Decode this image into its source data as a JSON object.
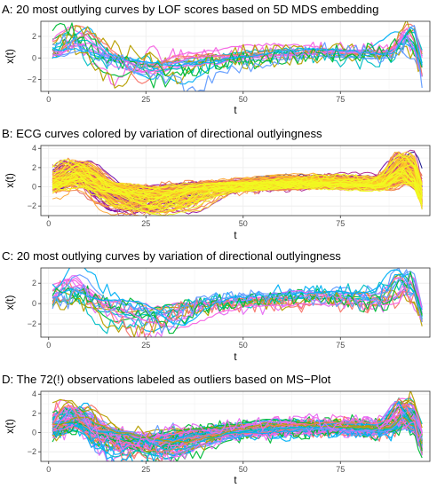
{
  "figure": {
    "panels": [
      {
        "title": "A: 20 most outlying curves by LOF scores based on 5D MDS embedding",
        "n_curves": 20,
        "palette": "mixed"
      },
      {
        "title": "B: ECG curves colored by variation of directional outlyingness",
        "n_curves": 140,
        "palette": "plasma"
      },
      {
        "title": "C: 20 most outlying curves by variation of directional outlyingness",
        "n_curves": 20,
        "palette": "mixed"
      },
      {
        "title": "D: The 72(!) observations labeled as outliers based on MS−Plot",
        "n_curves": 72,
        "palette": "mixed"
      }
    ]
  },
  "chart_data": [
    {
      "type": "line",
      "title": "A: 20 most outlying curves by LOF scores based on 5D MDS embedding",
      "xlabel": "t",
      "ylabel": "x(t)",
      "xlim": [
        -2,
        98
      ],
      "ylim": [
        -3.1,
        3.4
      ],
      "xticks": [
        0,
        25,
        50,
        75,
        100
      ],
      "yticks": [
        -2,
        0,
        2
      ],
      "grid": true,
      "legend": "none",
      "n_curves": 20,
      "colors": [
        "#F564E3",
        "#00BA38",
        "#00B0F6",
        "#619CFF",
        "#00BFC4",
        "#B79F00",
        "#F8766D",
        "#E76BF3"
      ]
    },
    {
      "type": "line",
      "title": "B: ECG curves colored by variation of directional outlyingness",
      "xlabel": "t",
      "ylabel": "x(t)",
      "xlim": [
        -2,
        98
      ],
      "ylim": [
        -3.0,
        4.3
      ],
      "xticks": [
        0,
        25,
        50,
        75,
        100
      ],
      "yticks": [
        -2,
        0,
        2,
        4
      ],
      "grid": true,
      "legend": "none",
      "n_curves": 140,
      "colors": [
        "#0D0887",
        "#41049D",
        "#6A00A8",
        "#8F0DA4",
        "#B12A90",
        "#CC4778",
        "#E16462",
        "#F1844B",
        "#FCA636",
        "#FCCE25",
        "#F0F921"
      ]
    },
    {
      "type": "line",
      "title": "C: 20 most outlying curves by variation of directional outlyingness",
      "xlabel": "t",
      "ylabel": "x(t)",
      "xlim": [
        -2,
        98
      ],
      "ylim": [
        -3.3,
        3.5
      ],
      "xticks": [
        0,
        25,
        50,
        75,
        100
      ],
      "yticks": [
        -2,
        0,
        2
      ],
      "grid": true,
      "legend": "none",
      "n_curves": 20,
      "colors": [
        "#F564E3",
        "#00BA38",
        "#00B0F6",
        "#619CFF",
        "#00BFC4",
        "#B79F00",
        "#F8766D",
        "#E76BF3"
      ]
    },
    {
      "type": "line",
      "title": "D: The 72(!) observations labeled as outliers based on MS−Plot",
      "xlabel": "t",
      "ylabel": "x(t)",
      "xlim": [
        -2,
        98
      ],
      "ylim": [
        -3.0,
        4.3
      ],
      "xticks": [
        0,
        25,
        50,
        75,
        100
      ],
      "yticks": [
        -2,
        0,
        2,
        4
      ],
      "grid": true,
      "legend": "none",
      "n_curves": 72,
      "colors": [
        "#F564E3",
        "#00BA38",
        "#00B0F6",
        "#619CFF",
        "#00BFC4",
        "#B79F00",
        "#F8766D",
        "#E76BF3"
      ]
    }
  ]
}
